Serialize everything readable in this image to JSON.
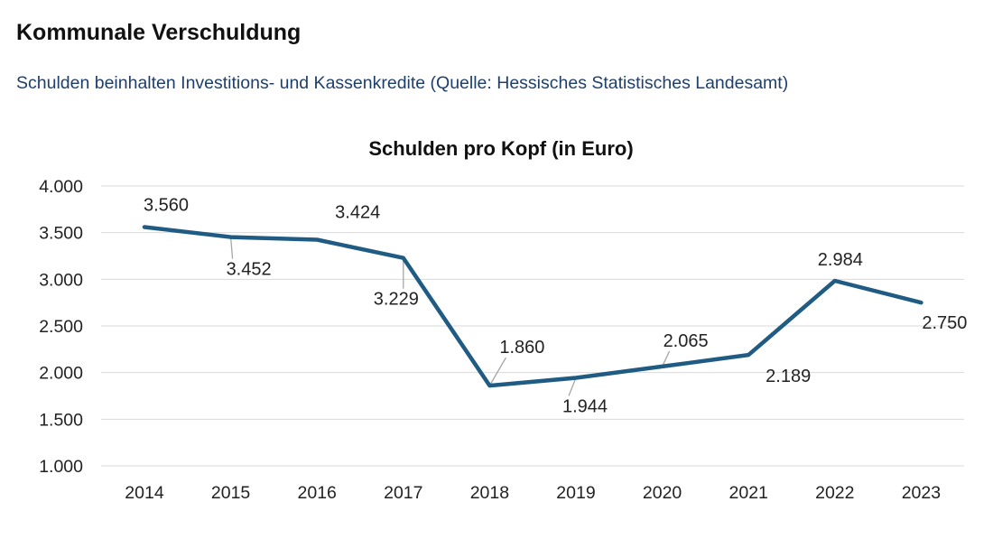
{
  "header": {
    "title": "Kommunale Verschuldung",
    "subtitle": "Schulden beinhalten Investitions- und Kassenkredite (Quelle: Hessisches Statistisches Landesamt)"
  },
  "chart_data": {
    "type": "line",
    "title": "Schulden pro Kopf (in Euro)",
    "xlabel": "",
    "ylabel": "",
    "categories": [
      "2014",
      "2015",
      "2016",
      "2017",
      "2018",
      "2019",
      "2020",
      "2021",
      "2022",
      "2023"
    ],
    "values": [
      3560,
      3452,
      3424,
      3229,
      1860,
      1944,
      2065,
      2189,
      2984,
      2750
    ],
    "data_labels": [
      "3.560",
      "3.452",
      "3.424",
      "3.229",
      "1.860",
      "1.944",
      "2.065",
      "2.189",
      "2.984",
      "2.750"
    ],
    "ylim": [
      1000,
      4000
    ],
    "yticks": [
      1000,
      1500,
      2000,
      2500,
      3000,
      3500,
      4000
    ],
    "ytick_labels": [
      "1.000",
      "1.500",
      "2.000",
      "2.500",
      "3.000",
      "3.500",
      "4.000"
    ],
    "grid": true,
    "legend": "none",
    "colors": {
      "line": "#1f5b82",
      "grid": "#d9d9d9",
      "leader": "#a6a6a6",
      "text": "#222222"
    }
  }
}
